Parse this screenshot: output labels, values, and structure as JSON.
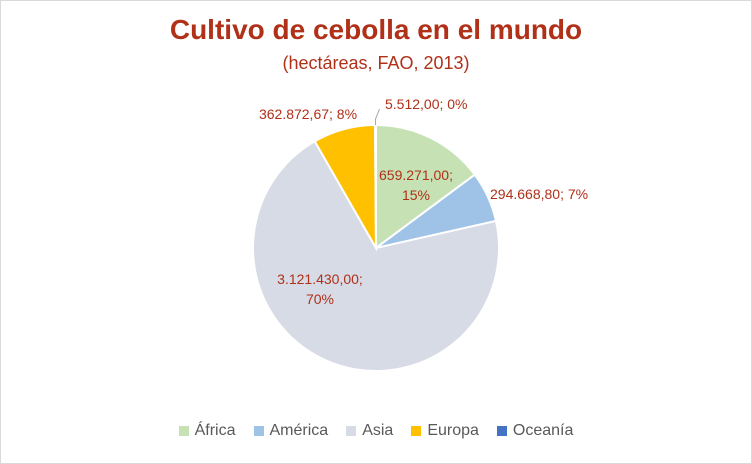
{
  "chart_data": {
    "type": "pie",
    "title": "Cultivo de cebolla en el mundo",
    "subtitle": "(hectáreas, FAO, 2013)",
    "categories": [
      "África",
      "América",
      "Asia",
      "Europa",
      "Oceanía"
    ],
    "values": [
      659271.0,
      294668.8,
      3121430.0,
      362872.67,
      5512.0
    ],
    "colors": [
      "#c6e2b5",
      "#9fc3e7",
      "#d6dbe5",
      "#ffc000",
      "#4472c4"
    ],
    "data_labels": [
      [
        "659.271,00;",
        "15%"
      ],
      [
        "294.668,80; 7%"
      ],
      [
        "3.121.430,00;",
        "70%"
      ],
      [
        "362.872,67; 8%"
      ],
      [
        "5.512,00; 0%"
      ]
    ],
    "legend": "bottom",
    "label_color": "#b03018"
  }
}
